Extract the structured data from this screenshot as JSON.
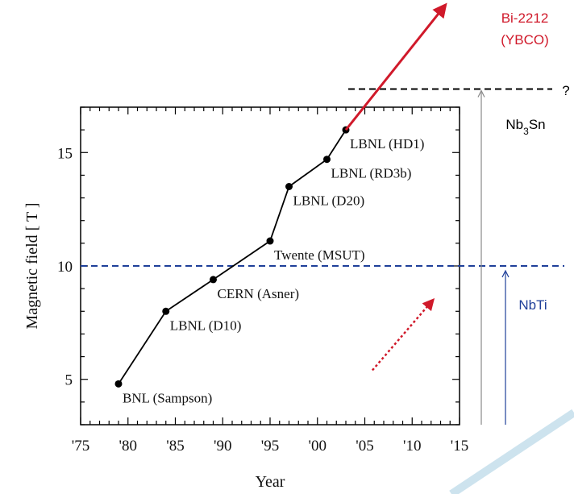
{
  "chart_data": {
    "type": "line",
    "xlabel": "Year",
    "ylabel": "Magnetic field [ T ]",
    "xlim": [
      1975,
      2015
    ],
    "ylim": [
      3,
      17
    ],
    "x_ticks": [
      1975,
      1980,
      1985,
      1990,
      1995,
      2000,
      2005,
      2010,
      2015
    ],
    "x_tick_labels": [
      "'75",
      "'80",
      "'85",
      "'90",
      "'95",
      "'00",
      "'05",
      "'10",
      "'15"
    ],
    "y_ticks": [
      5,
      10,
      15
    ],
    "y_tick_labels": [
      "5",
      "10",
      "15"
    ],
    "series": [
      {
        "points": [
          {
            "x": 1979,
            "y": 4.8,
            "label": "BNL (Sampson)"
          },
          {
            "x": 1984,
            "y": 8.0,
            "label": "LBNL (D10)"
          },
          {
            "x": 1989,
            "y": 9.4,
            "label": "CERN (Asner)"
          },
          {
            "x": 1995,
            "y": 11.1,
            "label": "Twente (MSUT)"
          },
          {
            "x": 1997,
            "y": 13.5,
            "label": "LBNL (D20)"
          },
          {
            "x": 2001,
            "y": 14.7,
            "label": "LBNL (RD3b)"
          },
          {
            "x": 2003,
            "y": 16.0,
            "label": "LBNL (HD1)"
          }
        ]
      }
    ],
    "annotations": {
      "nbti_limit": {
        "y": 10,
        "label": "NbTi",
        "color": "#1f3f99"
      },
      "nb3sn_limit": {
        "y": 17.8,
        "label_base": "Nb",
        "label_sub": "3",
        "label_tail": "Sn",
        "question": "?",
        "color": "#000000"
      },
      "bi_label_line1": "Bi-2212",
      "bi_label_line2": "(YBCO)",
      "bi_color": "#d0192a",
      "trend_arrow": {
        "from": [
          2005.8,
          5.4
        ],
        "to": [
          2012.2,
          8.5
        ],
        "color": "#d0192a"
      },
      "bi_arrow": {
        "from": [
          2003,
          16.0
        ],
        "to": [
          2013.5,
          21.5
        ],
        "color": "#d0192a"
      }
    }
  }
}
